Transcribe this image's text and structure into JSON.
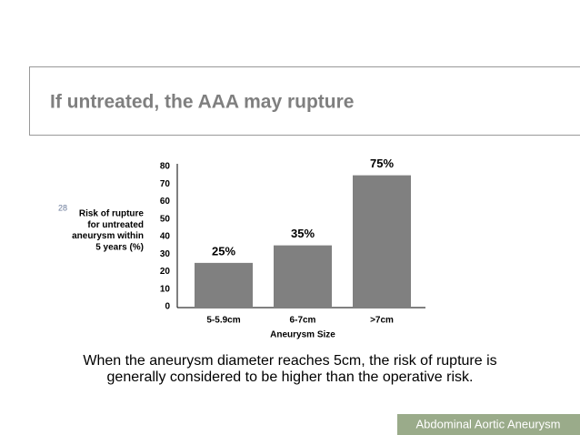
{
  "slide_title": "If untreated, the AAA may rupture",
  "chart_data": {
    "type": "bar",
    "footnote_marker": "28",
    "y_label": [
      "Risk of rupture",
      "for untreated",
      "aneurysm within",
      "5 years (%)"
    ],
    "x_label": "Aneurysm Size",
    "categories": [
      "5-5.9cm",
      "6-7cm",
      ">7cm"
    ],
    "values": [
      25,
      35,
      75
    ],
    "value_labels": [
      "25%",
      "35%",
      "75%"
    ],
    "color": "#808080",
    "ylim": [
      0,
      80
    ],
    "yticks": [
      0,
      10,
      20,
      30,
      40,
      50,
      60,
      70,
      80
    ],
    "grid": false
  },
  "caption": [
    "When the aneurysm diameter reaches 5cm, the risk of rupture is",
    "generally considered to be higher than the operative risk."
  ],
  "footer": "Abdominal Aortic Aneurysm"
}
